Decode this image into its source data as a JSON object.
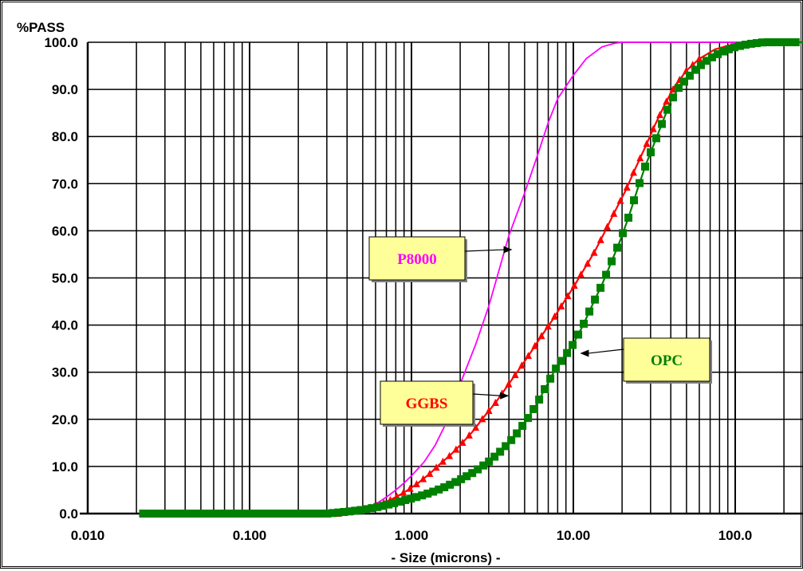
{
  "chart_data": {
    "type": "line",
    "title": "",
    "ylabel": "%PASS",
    "xlabel": "- Size (microns) -",
    "x_scale": "log",
    "xlim": [
      0.01,
      300
    ],
    "ylim": [
      0,
      100
    ],
    "grid": true,
    "x_tick_values": [
      0.01,
      0.1,
      1,
      10,
      100
    ],
    "x_tick_labels": [
      "0.010",
      "0.100",
      "1.000",
      "10.00",
      "100.0"
    ],
    "y_tick_values": [
      0,
      10,
      20,
      30,
      40,
      50,
      60,
      70,
      80,
      90,
      100
    ],
    "y_tick_labels": [
      "0.0",
      "10.0",
      "20.0",
      "30.0",
      "40.0",
      "50.0",
      "60.0",
      "70.0",
      "80.0",
      "90.0",
      "100.0"
    ],
    "series": [
      {
        "name": "P8000",
        "color": "#ff00ff",
        "marker": "none",
        "points": [
          [
            0.4,
            0
          ],
          [
            0.5,
            0.8
          ],
          [
            0.6,
            2
          ],
          [
            0.7,
            3.5
          ],
          [
            0.8,
            5
          ],
          [
            0.9,
            6.5
          ],
          [
            1.0,
            8
          ],
          [
            1.2,
            11
          ],
          [
            1.4,
            14.5
          ],
          [
            1.6,
            18.5
          ],
          [
            1.8,
            23
          ],
          [
            2.0,
            27.5
          ],
          [
            2.5,
            36
          ],
          [
            3.0,
            44
          ],
          [
            3.5,
            52
          ],
          [
            4.0,
            59
          ],
          [
            5.0,
            68
          ],
          [
            6.0,
            76
          ],
          [
            7.0,
            83
          ],
          [
            8.0,
            88
          ],
          [
            10.0,
            93
          ],
          [
            12.0,
            96.5
          ],
          [
            15.0,
            99
          ],
          [
            18.0,
            99.8
          ],
          [
            20.0,
            100
          ],
          [
            300.0,
            100
          ]
        ]
      },
      {
        "name": "GGBS",
        "color": "#ff0000",
        "marker": "triangle",
        "points": [
          [
            0.35,
            0
          ],
          [
            0.45,
            0.5
          ],
          [
            0.55,
            1.2
          ],
          [
            0.65,
            2
          ],
          [
            0.75,
            3
          ],
          [
            0.85,
            4
          ],
          [
            0.95,
            5
          ],
          [
            1.1,
            6.5
          ],
          [
            1.3,
            8.5
          ],
          [
            1.5,
            10.5
          ],
          [
            1.75,
            12.5
          ],
          [
            2.0,
            14.5
          ],
          [
            2.4,
            17.5
          ],
          [
            2.8,
            20.5
          ],
          [
            3.3,
            23.5
          ],
          [
            3.9,
            27
          ],
          [
            4.6,
            30.5
          ],
          [
            5.4,
            34
          ],
          [
            6.3,
            37.5
          ],
          [
            7.4,
            41
          ],
          [
            8.6,
            44.5
          ],
          [
            10.0,
            48
          ],
          [
            11.5,
            51.5
          ],
          [
            13.5,
            55.5
          ],
          [
            15.5,
            59.5
          ],
          [
            18.0,
            64
          ],
          [
            21.0,
            68.5
          ],
          [
            24.0,
            73
          ],
          [
            28.0,
            78
          ],
          [
            32.0,
            82.5
          ],
          [
            37.0,
            87
          ],
          [
            42.0,
            90.5
          ],
          [
            50.0,
            94
          ],
          [
            60.0,
            96.5
          ],
          [
            75.0,
            98.5
          ],
          [
            100.0,
            99.7
          ],
          [
            150.0,
            100
          ],
          [
            300.0,
            100
          ]
        ]
      },
      {
        "name": "OPC",
        "color": "#008000",
        "marker": "square",
        "points": [
          [
            0.022,
            0
          ],
          [
            0.3,
            0
          ],
          [
            0.4,
            0.4
          ],
          [
            0.5,
            0.8
          ],
          [
            0.6,
            1.3
          ],
          [
            0.7,
            1.8
          ],
          [
            0.8,
            2.3
          ],
          [
            0.9,
            2.8
          ],
          [
            1.0,
            3.2
          ],
          [
            1.2,
            4.0
          ],
          [
            1.4,
            4.8
          ],
          [
            1.6,
            5.6
          ],
          [
            1.8,
            6.4
          ],
          [
            2.0,
            7.2
          ],
          [
            2.3,
            8.3
          ],
          [
            2.6,
            9.5
          ],
          [
            3.0,
            11
          ],
          [
            3.5,
            13
          ],
          [
            4.0,
            15
          ],
          [
            4.6,
            17.5
          ],
          [
            5.3,
            20.5
          ],
          [
            6.0,
            23.5
          ],
          [
            6.8,
            27
          ],
          [
            7.7,
            30.5
          ],
          [
            8.7,
            33
          ],
          [
            10.0,
            36
          ],
          [
            11.5,
            40
          ],
          [
            13.0,
            44
          ],
          [
            15.0,
            48.5
          ],
          [
            17.0,
            53
          ],
          [
            19.5,
            58
          ],
          [
            22.0,
            63
          ],
          [
            25.0,
            69
          ],
          [
            28.0,
            74
          ],
          [
            32.0,
            79
          ],
          [
            36.0,
            83.5
          ],
          [
            40.0,
            87.5
          ],
          [
            45.0,
            90.5
          ],
          [
            51.0,
            92.5
          ],
          [
            58.0,
            94.5
          ],
          [
            66.0,
            96
          ],
          [
            75.0,
            97.2
          ],
          [
            86.0,
            98.2
          ],
          [
            100.0,
            99
          ],
          [
            120.0,
            99.6
          ],
          [
            150.0,
            100
          ],
          [
            300.0,
            100
          ]
        ]
      }
    ],
    "annotations": [
      {
        "text": "P8000",
        "color": "#ff00ff",
        "box_fill": "#ffff99",
        "points_to": [
          4.2,
          56
        ]
      },
      {
        "text": "GGBS",
        "color": "#ff0000",
        "box_fill": "#ffff99",
        "points_to": [
          4.0,
          25
        ]
      },
      {
        "text": "OPC",
        "color": "#008000",
        "box_fill": "#ffff99",
        "points_to": [
          11.0,
          34
        ]
      }
    ]
  }
}
